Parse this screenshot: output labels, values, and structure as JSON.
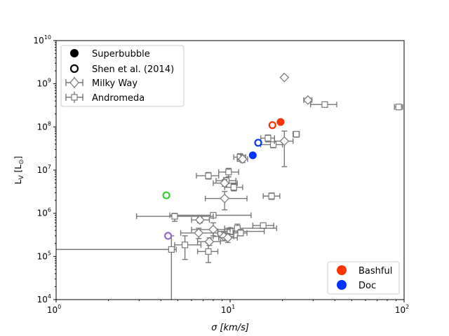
{
  "chart_data": {
    "type": "scatter",
    "xlabel": "σ [km/s]",
    "ylabel_main": "L",
    "ylabel_sub": "V",
    "ylabel_units": "[L",
    "ylabel_sun": "⊙",
    "ylabel_close": "]",
    "xscale": "log",
    "yscale": "log",
    "xlim": [
      1,
      100
    ],
    "ylim": [
      10000,
      10000000000
    ],
    "x_ticks": [
      {
        "value": 1,
        "base": "10",
        "exp": "0"
      },
      {
        "value": 10,
        "base": "10",
        "exp": "1"
      },
      {
        "value": 100,
        "base": "10",
        "exp": "2"
      }
    ],
    "y_ticks": [
      {
        "value": 10000,
        "base": "10",
        "exp": "4"
      },
      {
        "value": 100000,
        "base": "10",
        "exp": "5"
      },
      {
        "value": 1000000,
        "base": "10",
        "exp": "6"
      },
      {
        "value": 10000000,
        "base": "10",
        "exp": "7"
      },
      {
        "value": 100000000,
        "base": "10",
        "exp": "8"
      },
      {
        "value": 1000000000,
        "base": "10",
        "exp": "9"
      },
      {
        "value": 10000000000,
        "base": "10",
        "exp": "10"
      }
    ],
    "grid": false,
    "legend_main": [
      {
        "label": "Superbubble",
        "marker": "filled-circle"
      },
      {
        "label": "Shen et al. (2014)",
        "marker": "open-circle"
      },
      {
        "label": "Milky Way",
        "marker": "diamond"
      },
      {
        "label": "Andromeda",
        "marker": "square"
      }
    ],
    "legend_main_position": "top-left",
    "legend_color": [
      {
        "label": "Bashful",
        "color": "#ff3300"
      },
      {
        "label": "Doc",
        "color": "#0033ff"
      }
    ],
    "legend_color_position": "bottom-right",
    "colors": {
      "bashful": "#ff3300",
      "doc": "#0033ff",
      "green": "#33cc33",
      "purple": "#9966cc",
      "gray": "#777777"
    },
    "series": [
      {
        "kind": "superbubble",
        "points": [
          {
            "x": 19.5,
            "y": 130000000,
            "color": "#ff3300"
          },
          {
            "x": 13.5,
            "y": 22000000,
            "color": "#0033ff"
          }
        ]
      },
      {
        "kind": "shen",
        "points": [
          {
            "x": 17.5,
            "y": 110000000,
            "color": "#ff3300"
          },
          {
            "x": 14.5,
            "y": 43000000,
            "color": "#0033ff"
          },
          {
            "x": 4.3,
            "y": 2600000,
            "color": "#33cc33"
          },
          {
            "x": 4.4,
            "y": 300000,
            "color": "#9966cc"
          }
        ]
      },
      {
        "kind": "milkyway",
        "points": [
          {
            "x": 20.5,
            "y": 1400000000
          },
          {
            "x": 28,
            "y": 420000000,
            "xerr": [
              26.5,
              29.5
            ],
            "yerr": [
              380000000,
              470000000
            ]
          },
          {
            "x": 20.5,
            "y": 47000000,
            "xerr": [
              18,
              23
            ],
            "yerr": [
              12000000,
              80000000
            ]
          },
          {
            "x": 11.8,
            "y": 18000000,
            "xerr": [
              11,
              12.6
            ],
            "yerr": [
              15000000,
              22000000
            ]
          },
          {
            "x": 9.3,
            "y": 5000000,
            "xerr": [
              8,
              11
            ],
            "yerr": [
              4200000,
              6000000
            ]
          },
          {
            "x": 9.3,
            "y": 2200000,
            "xerr": [
              7.2,
              12.5
            ],
            "yerr": [
              1200000,
              3200000
            ]
          },
          {
            "x": 6.7,
            "y": 700000,
            "xerr": [
              6,
              7.6
            ],
            "yerr": [
              600000,
              820000
            ]
          },
          {
            "x": 8,
            "y": 420000,
            "xerr": [
              6,
              10
            ],
            "yerr": [
              300000,
              600000
            ]
          },
          {
            "x": 6.6,
            "y": 350000,
            "xerr": [
              5.2,
              8.5
            ],
            "yerr": [
              260000,
              450000
            ]
          },
          {
            "x": 9.2,
            "y": 290000,
            "xerr": [
              8,
              10.5
            ],
            "yerr": [
              230000,
              360000
            ]
          },
          {
            "x": 9.7,
            "y": 270000,
            "xerr": [
              8.6,
              11
            ],
            "yerr": [
              210000,
              340000
            ]
          },
          {
            "x": 7.6,
            "y": 220000,
            "xerr": [
              6.5,
              8.8
            ],
            "yerr": [
              180000,
              270000
            ]
          }
        ]
      },
      {
        "kind": "andromeda",
        "points": [
          {
            "x": 93,
            "y": 290000000,
            "xerr": [
              88,
              98
            ],
            "yerr": [
              250000000,
              330000000
            ]
          },
          {
            "x": 35,
            "y": 330000000,
            "xerr": [
              29,
              41
            ],
            "yerr": [
              300000000,
              360000000
            ]
          },
          {
            "x": 24,
            "y": 68000000,
            "xerr": [
              23,
              25
            ],
            "yerr": [
              58000000,
              78000000
            ]
          },
          {
            "x": 16.5,
            "y": 55000000,
            "xerr": [
              15,
              18
            ],
            "yerr": [
              45000000,
              65000000
            ]
          },
          {
            "x": 17.7,
            "y": 39000000,
            "xerr": [
              15,
              20
            ],
            "yerr": [
              33000000,
              45000000
            ]
          },
          {
            "x": 11.4,
            "y": 20000000,
            "xerr": [
              10.5,
              12.3
            ],
            "yerr": [
              16000000,
              24000000
            ]
          },
          {
            "x": 9.8,
            "y": 9000000,
            "xerr": [
              8.6,
              11.2
            ],
            "yerr": [
              7000000,
              11000000
            ]
          },
          {
            "x": 7.5,
            "y": 7400000,
            "xerr": [
              6.4,
              8.6
            ],
            "yerr": [
              6200000,
              8800000
            ]
          },
          {
            "x": 9.5,
            "y": 5700000,
            "xerr": [
              8.3,
              10.8
            ],
            "yerr": [
              4800000,
              6700000
            ]
          },
          {
            "x": 10.5,
            "y": 4000000,
            "xerr": [
              9.3,
              11.8
            ],
            "yerr": [
              3300000,
              4800000
            ]
          },
          {
            "x": 17.3,
            "y": 2500000,
            "xerr": [
              15.5,
              19.3
            ],
            "yerr": [
              2100000,
              2950000
            ]
          },
          {
            "x": 8,
            "y": 900000,
            "xerr": [
              4.5,
              13.2
            ],
            "yerr": [
              780000,
              1030000
            ]
          },
          {
            "x": 4.8,
            "y": 850000,
            "xerr": [
              2.9,
              8
            ],
            "yerr": [
              650000,
              1000000
            ]
          },
          {
            "x": 15.5,
            "y": 520000,
            "xerr": [
              13.5,
              17.8
            ],
            "yerr": [
              450000,
              580000
            ]
          },
          {
            "x": 11,
            "y": 450000,
            "xerr": [
              9.3,
              18.5
            ],
            "yerr": [
              350000,
              560000
            ]
          },
          {
            "x": 10,
            "y": 380000,
            "xerr": [
              8.5,
              15.7
            ],
            "yerr": [
              320000,
              460000
            ]
          },
          {
            "x": 11.5,
            "y": 350000,
            "xerr": [
              10.5,
              12.5
            ],
            "yerr": [
              300000,
              420000
            ]
          },
          {
            "x": 5.5,
            "y": 185000,
            "xerr": [
              4.8,
              6.8
            ],
            "yerr": [
              85000,
              300000
            ]
          },
          {
            "x": 4.6,
            "y": 145000,
            "xerr": [
              1,
              4.9
            ],
            "yerr": [
              10000,
              300000
            ]
          },
          {
            "x": 7.5,
            "y": 130000,
            "xerr": [
              6.5,
              8.5
            ],
            "yerr": [
              72000,
              205000
            ]
          }
        ]
      }
    ]
  }
}
